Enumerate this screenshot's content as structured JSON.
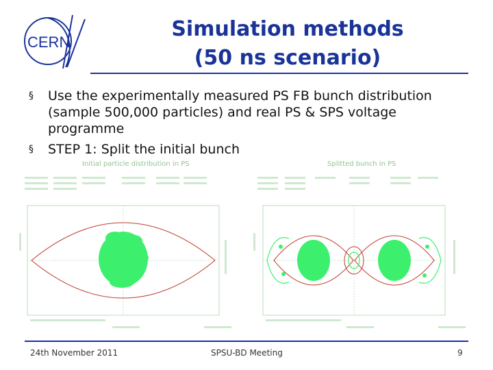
{
  "logo": {
    "text": "CERN"
  },
  "title": {
    "line1": "Simulation methods",
    "line2": "(50 ns scenario)"
  },
  "bullets": [
    "Use the experimentally measured PS FB bunch distribution (sample 500,000 particles) and real PS & SPS voltage programme",
    "STEP 1: Split the initial bunch"
  ],
  "plots": {
    "left": {
      "title": "Initial particle distribution in PS"
    },
    "right": {
      "title": "Splitted bunch in PS"
    }
  },
  "colors": {
    "accent": "#1a3399",
    "particles": "#3cf06e",
    "separatrix": "#c0392b",
    "axes": "#b8dcb8"
  },
  "footer": {
    "date": "24th November 2011",
    "meeting": "SPSU-BD Meeting",
    "page": "9"
  }
}
